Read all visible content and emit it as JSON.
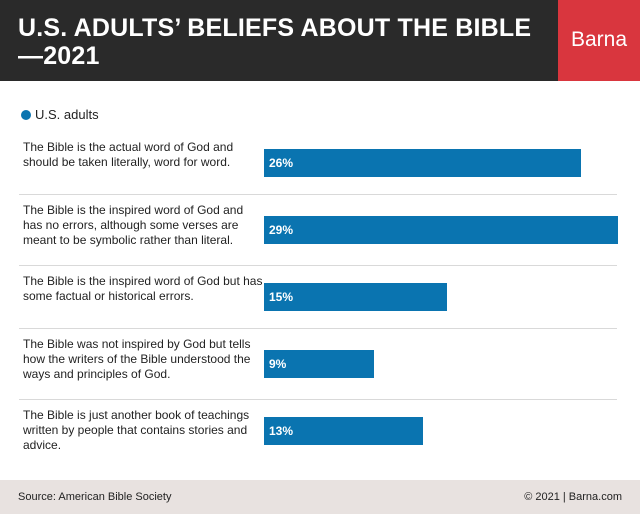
{
  "header": {
    "title": "U.S. ADULTS’ BELIEFS ABOUT THE BIBLE—2021",
    "brand": "Barna",
    "brand_color": "#d9363e",
    "background_color": "#2a2a2a"
  },
  "footer": {
    "source": "Source: American Bible Society",
    "copyright": "© 2021 |  Barna.com"
  },
  "chart_data": {
    "type": "bar",
    "orientation": "horizontal",
    "title": "U.S. ADULTS’ BELIEFS ABOUT THE BIBLE—2021",
    "xlabel": "",
    "ylabel": "",
    "xlim": [
      0,
      29
    ],
    "grid": false,
    "legend_position": "top-left",
    "bar_color": "#0a74b0",
    "categories": [
      "The Bible is the actual word of God and should be taken literally, word for word.",
      "The Bible is the inspired word of God and has no errors, although some verses are meant to be symbolic rather than literal.",
      "The Bible is the inspired word of God but has some factual or historical errors.",
      "The Bible was not inspired by God but tells how the writers of the Bible understood the ways and principles of God.",
      "The Bible is just another book of teachings written by people that contains stories and advice."
    ],
    "series": [
      {
        "name": "U.S. adults",
        "values": [
          26,
          29,
          15,
          9,
          13
        ],
        "labels": [
          "26%",
          "29%",
          "15%",
          "9%",
          "13%"
        ]
      }
    ]
  }
}
